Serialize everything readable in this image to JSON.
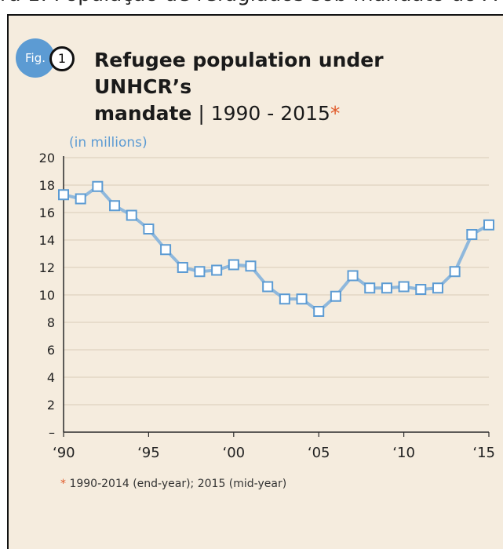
{
  "header_caption": "ra 1: População de refugiados sob mandato do A",
  "figure": {
    "badge": "Fig.",
    "number": "1",
    "title_bold_line1": "Refugee population under UNHCR’s",
    "title_bold_line2": "mandate",
    "title_separator": " | ",
    "title_range": "1990 - 2015",
    "title_asterisk": "*"
  },
  "colors": {
    "panel_bg": "#f5ecde",
    "line": "#8fb8dc",
    "accent_blue": "#5c9bd3",
    "asterisk": "#e05a2a"
  },
  "chart_data": {
    "type": "line",
    "title": "Refugee population under UNHCR’s mandate | 1990 - 2015*",
    "units_label": "(in millions)",
    "x": [
      1990,
      1991,
      1992,
      1993,
      1994,
      1995,
      1996,
      1997,
      1998,
      1999,
      2000,
      2001,
      2002,
      2003,
      2004,
      2005,
      2006,
      2007,
      2008,
      2009,
      2010,
      2011,
      2012,
      2013,
      2014,
      2015
    ],
    "series": [
      {
        "values": [
          17.3,
          17.0,
          17.9,
          16.5,
          15.8,
          14.8,
          13.3,
          12.0,
          11.7,
          11.8,
          12.2,
          12.1,
          10.6,
          9.7,
          9.7,
          8.8,
          9.9,
          11.4,
          10.5,
          10.5,
          10.6,
          10.4,
          10.5,
          11.7,
          14.4,
          15.1
        ]
      }
    ],
    "ylim": [
      0,
      20
    ],
    "xlim": [
      1990,
      2015
    ],
    "y_ticks": [
      "20",
      "18",
      "16",
      "14",
      "12",
      "10",
      "8",
      "6",
      "4",
      "2",
      "–"
    ],
    "y_tick_values": [
      20,
      18,
      16,
      14,
      12,
      10,
      8,
      6,
      4,
      2,
      0
    ],
    "x_ticks": [
      "‘90",
      "‘95",
      "‘00",
      "‘05",
      "‘10",
      "‘15"
    ],
    "x_tick_values": [
      1990,
      1995,
      2000,
      2005,
      2010,
      2015
    ],
    "grid": true,
    "legend": "none"
  },
  "footnote": {
    "asterisk": "*",
    "text": "1990-2014 (end-year); 2015 (mid-year)"
  }
}
